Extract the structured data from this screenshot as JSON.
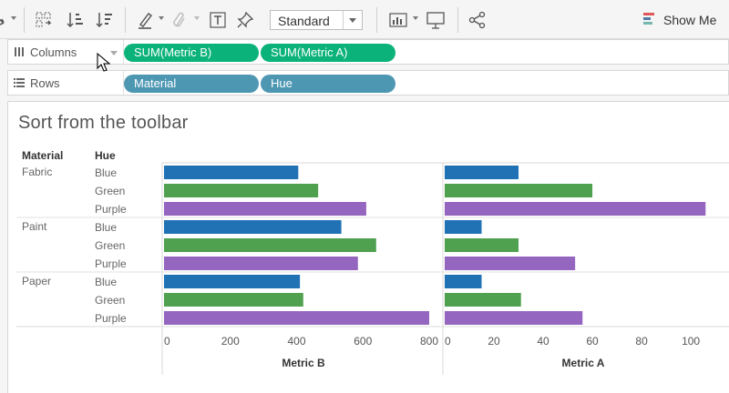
{
  "toolbar": {
    "style_select": {
      "value": "Standard"
    },
    "show_me_label": "Show Me",
    "colors": {
      "showme_bar1": "#e15759",
      "showme_bar2": "#4e79a7",
      "showme_bar3": "#76b7b2"
    }
  },
  "shelves": {
    "columns": {
      "label": "Columns",
      "pills": [
        "SUM(Metric B)",
        "SUM(Metric A)"
      ]
    },
    "rows": {
      "label": "Rows",
      "pills": [
        "Material",
        "Hue"
      ]
    }
  },
  "view": {
    "title": "Sort from the toolbar",
    "headers": {
      "material": "Material",
      "hue": "Hue"
    }
  },
  "chart_data": {
    "type": "bar",
    "orientation": "horizontal",
    "row_dimensions": [
      "Material",
      "Hue"
    ],
    "materials": [
      "Fabric",
      "Paint",
      "Paper"
    ],
    "hues": [
      "Blue",
      "Green",
      "Purple"
    ],
    "hue_colors": {
      "Blue": "#2171b5",
      "Green": "#50a14f",
      "Purple": "#9466c0"
    },
    "panes": [
      {
        "measure": "Metric B",
        "xlim": [
          0,
          800
        ],
        "ticks": [
          0,
          200,
          400,
          600,
          800
        ],
        "values": {
          "Fabric": [
            405,
            465,
            610
          ],
          "Paint": [
            535,
            640,
            585
          ],
          "Paper": [
            410,
            420,
            800
          ]
        }
      },
      {
        "measure": "Metric A",
        "xlim": [
          0,
          107
        ],
        "ticks": [
          0,
          20,
          40,
          60,
          80,
          100
        ],
        "values": {
          "Fabric": [
            30,
            60,
            106
          ],
          "Paint": [
            15,
            30,
            53
          ],
          "Paper": [
            15,
            31,
            56
          ]
        }
      }
    ]
  }
}
